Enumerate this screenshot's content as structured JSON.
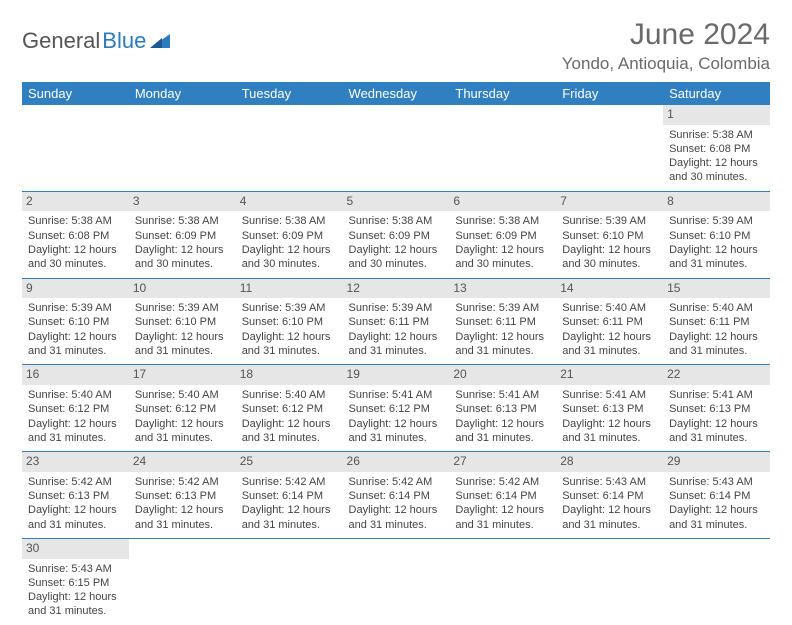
{
  "brand": {
    "general": "General",
    "blue": "Blue"
  },
  "header": {
    "month_year": "June 2024",
    "location": "Yondo, Antioquia, Colombia"
  },
  "colors": {
    "header_bg": "#2f7fc1",
    "daynum_bg": "#e6e6e6",
    "rule": "#2f7fc1"
  },
  "weekdays": [
    "Sunday",
    "Monday",
    "Tuesday",
    "Wednesday",
    "Thursday",
    "Friday",
    "Saturday"
  ],
  "weeks": [
    [
      null,
      null,
      null,
      null,
      null,
      null,
      {
        "n": "1",
        "sr": "Sunrise: 5:38 AM",
        "ss": "Sunset: 6:08 PM",
        "d1": "Daylight: 12 hours",
        "d2": "and 30 minutes."
      }
    ],
    [
      {
        "n": "2",
        "sr": "Sunrise: 5:38 AM",
        "ss": "Sunset: 6:08 PM",
        "d1": "Daylight: 12 hours",
        "d2": "and 30 minutes."
      },
      {
        "n": "3",
        "sr": "Sunrise: 5:38 AM",
        "ss": "Sunset: 6:09 PM",
        "d1": "Daylight: 12 hours",
        "d2": "and 30 minutes."
      },
      {
        "n": "4",
        "sr": "Sunrise: 5:38 AM",
        "ss": "Sunset: 6:09 PM",
        "d1": "Daylight: 12 hours",
        "d2": "and 30 minutes."
      },
      {
        "n": "5",
        "sr": "Sunrise: 5:38 AM",
        "ss": "Sunset: 6:09 PM",
        "d1": "Daylight: 12 hours",
        "d2": "and 30 minutes."
      },
      {
        "n": "6",
        "sr": "Sunrise: 5:38 AM",
        "ss": "Sunset: 6:09 PM",
        "d1": "Daylight: 12 hours",
        "d2": "and 30 minutes."
      },
      {
        "n": "7",
        "sr": "Sunrise: 5:39 AM",
        "ss": "Sunset: 6:10 PM",
        "d1": "Daylight: 12 hours",
        "d2": "and 30 minutes."
      },
      {
        "n": "8",
        "sr": "Sunrise: 5:39 AM",
        "ss": "Sunset: 6:10 PM",
        "d1": "Daylight: 12 hours",
        "d2": "and 31 minutes."
      }
    ],
    [
      {
        "n": "9",
        "sr": "Sunrise: 5:39 AM",
        "ss": "Sunset: 6:10 PM",
        "d1": "Daylight: 12 hours",
        "d2": "and 31 minutes."
      },
      {
        "n": "10",
        "sr": "Sunrise: 5:39 AM",
        "ss": "Sunset: 6:10 PM",
        "d1": "Daylight: 12 hours",
        "d2": "and 31 minutes."
      },
      {
        "n": "11",
        "sr": "Sunrise: 5:39 AM",
        "ss": "Sunset: 6:10 PM",
        "d1": "Daylight: 12 hours",
        "d2": "and 31 minutes."
      },
      {
        "n": "12",
        "sr": "Sunrise: 5:39 AM",
        "ss": "Sunset: 6:11 PM",
        "d1": "Daylight: 12 hours",
        "d2": "and 31 minutes."
      },
      {
        "n": "13",
        "sr": "Sunrise: 5:39 AM",
        "ss": "Sunset: 6:11 PM",
        "d1": "Daylight: 12 hours",
        "d2": "and 31 minutes."
      },
      {
        "n": "14",
        "sr": "Sunrise: 5:40 AM",
        "ss": "Sunset: 6:11 PM",
        "d1": "Daylight: 12 hours",
        "d2": "and 31 minutes."
      },
      {
        "n": "15",
        "sr": "Sunrise: 5:40 AM",
        "ss": "Sunset: 6:11 PM",
        "d1": "Daylight: 12 hours",
        "d2": "and 31 minutes."
      }
    ],
    [
      {
        "n": "16",
        "sr": "Sunrise: 5:40 AM",
        "ss": "Sunset: 6:12 PM",
        "d1": "Daylight: 12 hours",
        "d2": "and 31 minutes."
      },
      {
        "n": "17",
        "sr": "Sunrise: 5:40 AM",
        "ss": "Sunset: 6:12 PM",
        "d1": "Daylight: 12 hours",
        "d2": "and 31 minutes."
      },
      {
        "n": "18",
        "sr": "Sunrise: 5:40 AM",
        "ss": "Sunset: 6:12 PM",
        "d1": "Daylight: 12 hours",
        "d2": "and 31 minutes."
      },
      {
        "n": "19",
        "sr": "Sunrise: 5:41 AM",
        "ss": "Sunset: 6:12 PM",
        "d1": "Daylight: 12 hours",
        "d2": "and 31 minutes."
      },
      {
        "n": "20",
        "sr": "Sunrise: 5:41 AM",
        "ss": "Sunset: 6:13 PM",
        "d1": "Daylight: 12 hours",
        "d2": "and 31 minutes."
      },
      {
        "n": "21",
        "sr": "Sunrise: 5:41 AM",
        "ss": "Sunset: 6:13 PM",
        "d1": "Daylight: 12 hours",
        "d2": "and 31 minutes."
      },
      {
        "n": "22",
        "sr": "Sunrise: 5:41 AM",
        "ss": "Sunset: 6:13 PM",
        "d1": "Daylight: 12 hours",
        "d2": "and 31 minutes."
      }
    ],
    [
      {
        "n": "23",
        "sr": "Sunrise: 5:42 AM",
        "ss": "Sunset: 6:13 PM",
        "d1": "Daylight: 12 hours",
        "d2": "and 31 minutes."
      },
      {
        "n": "24",
        "sr": "Sunrise: 5:42 AM",
        "ss": "Sunset: 6:13 PM",
        "d1": "Daylight: 12 hours",
        "d2": "and 31 minutes."
      },
      {
        "n": "25",
        "sr": "Sunrise: 5:42 AM",
        "ss": "Sunset: 6:14 PM",
        "d1": "Daylight: 12 hours",
        "d2": "and 31 minutes."
      },
      {
        "n": "26",
        "sr": "Sunrise: 5:42 AM",
        "ss": "Sunset: 6:14 PM",
        "d1": "Daylight: 12 hours",
        "d2": "and 31 minutes."
      },
      {
        "n": "27",
        "sr": "Sunrise: 5:42 AM",
        "ss": "Sunset: 6:14 PM",
        "d1": "Daylight: 12 hours",
        "d2": "and 31 minutes."
      },
      {
        "n": "28",
        "sr": "Sunrise: 5:43 AM",
        "ss": "Sunset: 6:14 PM",
        "d1": "Daylight: 12 hours",
        "d2": "and 31 minutes."
      },
      {
        "n": "29",
        "sr": "Sunrise: 5:43 AM",
        "ss": "Sunset: 6:14 PM",
        "d1": "Daylight: 12 hours",
        "d2": "and 31 minutes."
      }
    ],
    [
      {
        "n": "30",
        "sr": "Sunrise: 5:43 AM",
        "ss": "Sunset: 6:15 PM",
        "d1": "Daylight: 12 hours",
        "d2": "and 31 minutes."
      },
      null,
      null,
      null,
      null,
      null,
      null
    ]
  ]
}
